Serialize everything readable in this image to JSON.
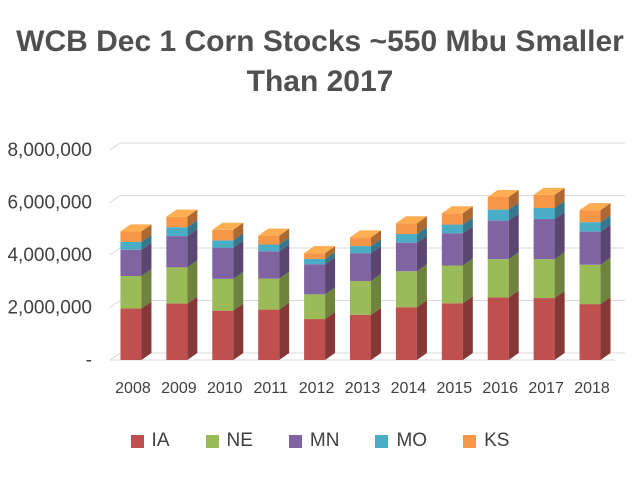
{
  "title_line1": "WCB Dec 1 Corn Stocks ~550 Mbu Smaller",
  "title_line2": "Than 2017",
  "chart_data": {
    "type": "bar",
    "stacked": true,
    "three_d": true,
    "title": "WCB Dec 1 Corn Stocks ~550 Mbu Smaller Than 2017",
    "categories": [
      "2008",
      "2009",
      "2010",
      "2011",
      "2012",
      "2013",
      "2014",
      "2015",
      "2016",
      "2017",
      "2018"
    ],
    "series": [
      {
        "name": "IA",
        "color": "#c0504d",
        "values": [
          1960000,
          2150000,
          1880000,
          1920000,
          1560000,
          1720000,
          2010000,
          2160000,
          2380000,
          2360000,
          2130000
        ]
      },
      {
        "name": "NE",
        "color": "#9bbb59",
        "values": [
          1240000,
          1380000,
          1210000,
          1180000,
          940000,
          1290000,
          1370000,
          1440000,
          1460000,
          1480000,
          1500000
        ]
      },
      {
        "name": "MN",
        "color": "#8064a2",
        "values": [
          1000000,
          1190000,
          1190000,
          1040000,
          1150000,
          1060000,
          1090000,
          1230000,
          1470000,
          1530000,
          1260000
        ]
      },
      {
        "name": "MO",
        "color": "#4bacc6",
        "values": [
          300000,
          340000,
          280000,
          260000,
          200000,
          270000,
          330000,
          330000,
          420000,
          420000,
          360000
        ]
      },
      {
        "name": "KS",
        "color": "#f79646",
        "values": [
          400000,
          400000,
          400000,
          340000,
          220000,
          330000,
          410000,
          430000,
          480000,
          500000,
          460000
        ]
      }
    ],
    "yticks": [
      "-",
      "2,000,000",
      "4,000,000",
      "6,000,000",
      "8,000,000"
    ],
    "ylim": [
      0,
      8000000
    ],
    "legend": "bottom",
    "grid": true
  }
}
